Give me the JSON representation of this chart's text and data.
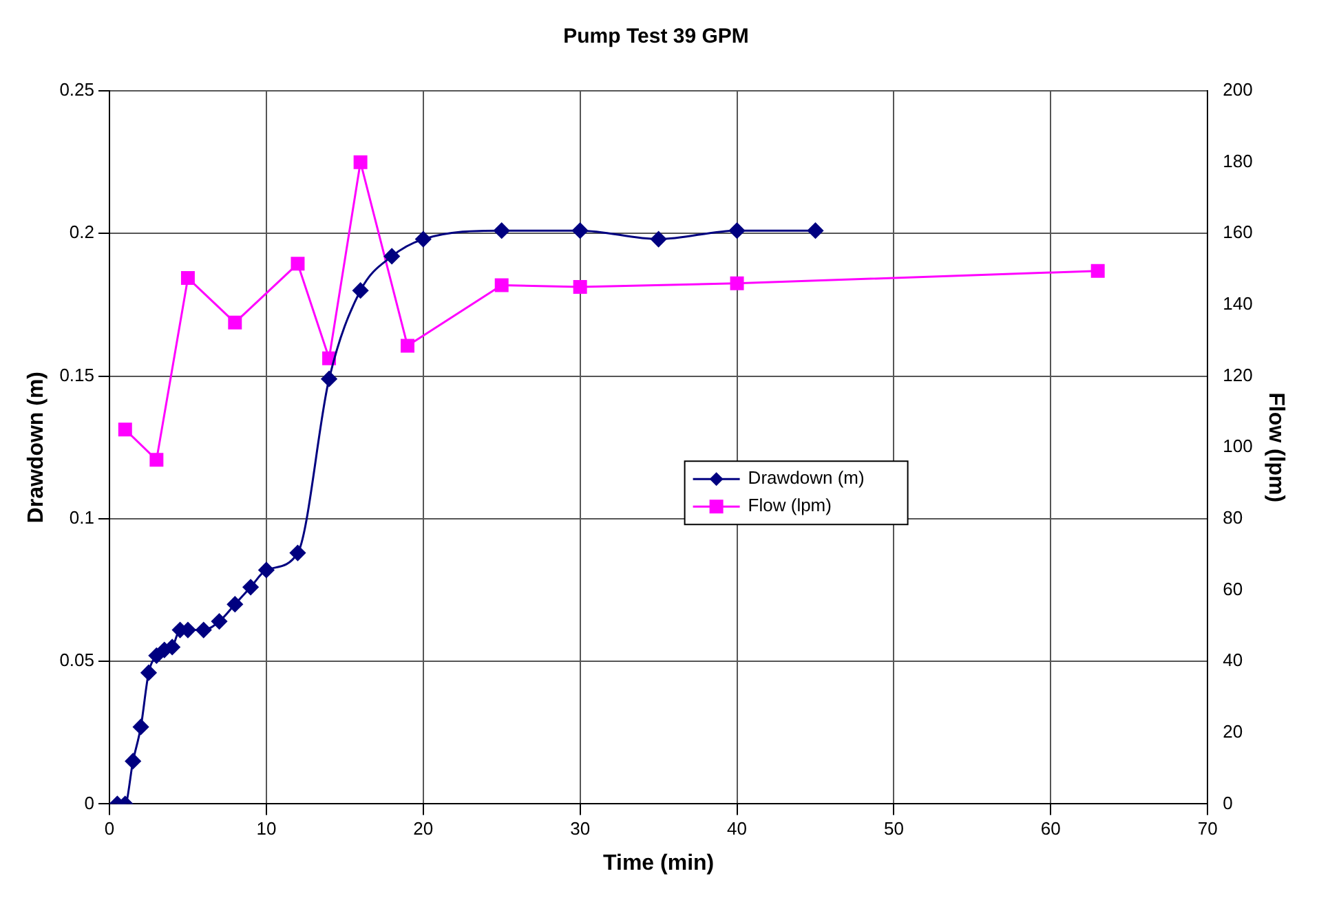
{
  "chart_data": {
    "type": "line",
    "title": "Pump Test 39 GPM",
    "xlabel": "Time (min)",
    "ylabel": "Drawdown (m)",
    "y2label": "Flow (lpm)",
    "series": [
      {
        "name": "Drawdown (m)",
        "color": "#000080",
        "marker": "diamond",
        "x": [
          0.5,
          1,
          1.5,
          2,
          2.5,
          3,
          3.5,
          4,
          4.5,
          5,
          6,
          7,
          8,
          9,
          10,
          12,
          14,
          16,
          18,
          20,
          25,
          30,
          35,
          40,
          45
        ],
        "values": [
          0,
          0,
          0.015,
          0.027,
          0.046,
          0.052,
          0.054,
          0.055,
          0.061,
          0.061,
          0.061,
          0.064,
          0.07,
          0.076,
          0.082,
          0.088,
          0.149,
          0.18,
          0.192,
          0.198,
          0.201,
          0.201,
          0.198,
          0.201,
          0.201
        ]
      },
      {
        "name": "Flow (lpm)",
        "color": "#ff00ff",
        "marker": "square",
        "axis": "y2",
        "x": [
          1,
          3,
          5,
          8,
          12,
          14,
          16,
          19,
          25,
          30,
          40,
          63
        ],
        "values": [
          105,
          96.5,
          147.5,
          135,
          151.5,
          125,
          180,
          128.5,
          145.5,
          145,
          146,
          149.5
        ]
      }
    ],
    "xlim": [
      0,
      70
    ],
    "xticks": [
      0,
      10,
      20,
      30,
      40,
      50,
      60,
      70
    ],
    "ylim": [
      0,
      0.25
    ],
    "yticks": [
      0,
      0.05,
      0.1,
      0.15,
      0.2,
      0.25
    ],
    "y2lim": [
      0,
      200
    ],
    "y2ticks": [
      0,
      20,
      40,
      60,
      80,
      100,
      120,
      140,
      160,
      180,
      200
    ],
    "grid": true,
    "legend": "center"
  }
}
